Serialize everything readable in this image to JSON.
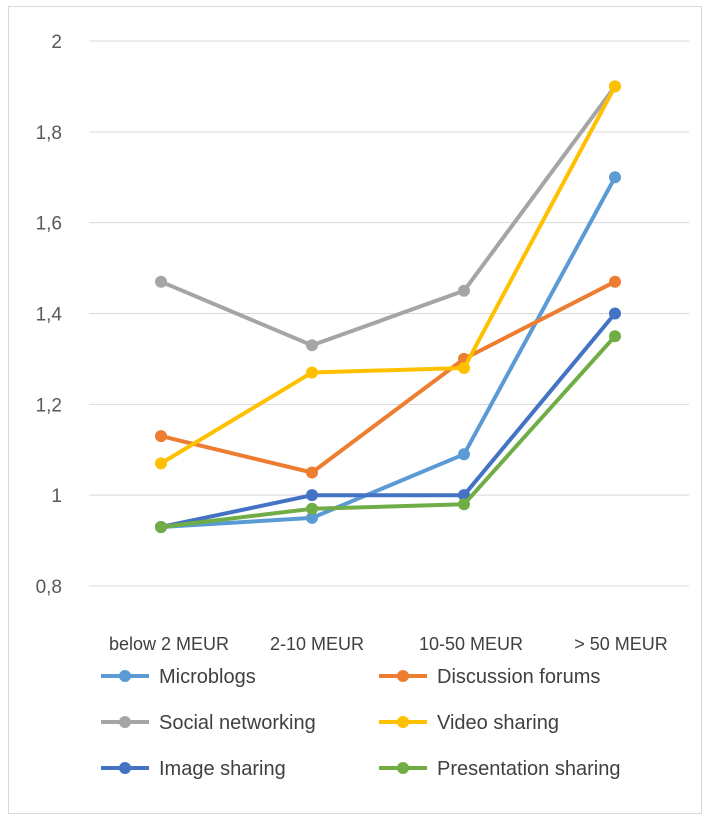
{
  "chart_data": {
    "type": "line",
    "categories": [
      "below 2 MEUR",
      "2-10 MEUR",
      "10-50 MEUR",
      "> 50 MEUR"
    ],
    "yticks": [
      "0,8",
      "1",
      "1,2",
      "1,4",
      "1,6",
      "1,8",
      "2"
    ],
    "ylim": [
      0.8,
      2.0
    ],
    "grid": true,
    "legend_position": "bottom",
    "series": [
      {
        "name": "Microblogs",
        "color": "#5b9bd5",
        "values": [
          0.93,
          0.95,
          1.09,
          1.7
        ]
      },
      {
        "name": "Discussion forums",
        "color": "#ed7d31",
        "values": [
          1.13,
          1.05,
          1.3,
          1.47
        ]
      },
      {
        "name": "Social networking",
        "color": "#a5a5a5",
        "values": [
          1.47,
          1.33,
          1.45,
          1.9
        ]
      },
      {
        "name": "Video sharing",
        "color": "#ffc000",
        "values": [
          1.07,
          1.27,
          1.28,
          1.9
        ]
      },
      {
        "name": "Image sharing",
        "color": "#4472c4",
        "values": [
          0.93,
          1.0,
          1.0,
          1.4
        ]
      },
      {
        "name": "Presentation sharing",
        "color": "#70ad47",
        "values": [
          0.93,
          0.97,
          0.98,
          1.35
        ]
      }
    ]
  }
}
